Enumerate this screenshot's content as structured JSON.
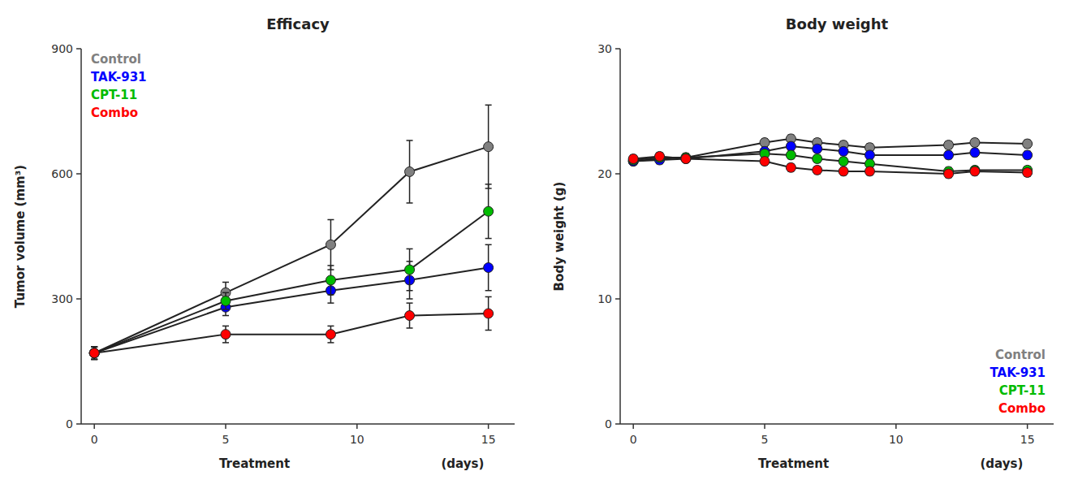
{
  "chart_data": [
    {
      "type": "line",
      "title": "Efficacy",
      "xlabel": [
        "Treatment",
        "(days)"
      ],
      "ylabel": "Tumor volume (mm³)",
      "x": [
        0,
        5,
        9,
        12,
        15
      ],
      "series": [
        {
          "name": "Control",
          "color": "#808080",
          "values": [
            170,
            315,
            430,
            605,
            665
          ],
          "errors": [
            15,
            25,
            60,
            75,
            100
          ]
        },
        {
          "name": "TAK-931",
          "color": "#0000FF",
          "values": [
            170,
            280,
            320,
            345,
            375
          ],
          "errors": [
            15,
            20,
            30,
            45,
            55
          ]
        },
        {
          "name": "CPT-11",
          "color": "#00BB00",
          "values": [
            170,
            295,
            345,
            370,
            510
          ],
          "errors": [
            15,
            20,
            35,
            50,
            65
          ]
        },
        {
          "name": "Combo",
          "color": "#FF0000",
          "values": [
            170,
            215,
            215,
            260,
            265
          ],
          "errors": [
            15,
            20,
            20,
            30,
            40
          ]
        }
      ],
      "xlim": [
        -0.5,
        16
      ],
      "xticks": [
        0,
        5,
        10,
        15
      ],
      "ylim": [
        0,
        900
      ],
      "yticks": [
        0,
        300,
        600,
        900
      ],
      "marker": "o",
      "legend": "upper left",
      "grid": false
    },
    {
      "type": "line",
      "title": "Body weight",
      "xlabel": [
        "Treatment",
        "(days)"
      ],
      "ylabel": "Body weight  (g)",
      "x": [
        0,
        1,
        2,
        5,
        6,
        7,
        8,
        9,
        12,
        13,
        15
      ],
      "series": [
        {
          "name": "Control",
          "color": "#808080",
          "values": [
            21.0,
            21.2,
            21.3,
            22.5,
            22.8,
            22.5,
            22.3,
            22.1,
            22.3,
            22.5,
            22.4
          ],
          "errors": [
            0.3,
            0.3,
            0.3,
            0.3,
            0.3,
            0.3,
            0.3,
            0.3,
            0.3,
            0.3,
            0.3
          ]
        },
        {
          "name": "TAK-931",
          "color": "#0000FF",
          "values": [
            21.0,
            21.1,
            21.2,
            21.8,
            22.2,
            22.0,
            21.8,
            21.5,
            21.5,
            21.7,
            21.5
          ],
          "errors": [
            0.3,
            0.3,
            0.3,
            0.3,
            0.3,
            0.3,
            0.3,
            0.3,
            0.3,
            0.3,
            0.3
          ]
        },
        {
          "name": "CPT-11",
          "color": "#00BB00",
          "values": [
            21.1,
            21.3,
            21.3,
            21.6,
            21.5,
            21.2,
            21.0,
            20.8,
            20.2,
            20.3,
            20.3
          ],
          "errors": [
            0.3,
            0.3,
            0.3,
            0.3,
            0.3,
            0.3,
            0.3,
            0.3,
            0.3,
            0.3,
            0.3
          ]
        },
        {
          "name": "Combo",
          "color": "#FF0000",
          "values": [
            21.2,
            21.4,
            21.2,
            21.0,
            20.5,
            20.3,
            20.2,
            20.2,
            20.0,
            20.2,
            20.1
          ],
          "errors": [
            0.3,
            0.3,
            0.3,
            0.3,
            0.3,
            0.3,
            0.3,
            0.3,
            0.3,
            0.3,
            0.3
          ]
        }
      ],
      "xlim": [
        -0.5,
        16
      ],
      "xticks": [
        0,
        5,
        10,
        15
      ],
      "ylim": [
        0,
        30
      ],
      "yticks": [
        0,
        10,
        20,
        30
      ],
      "marker": "o",
      "legend": "lower right",
      "grid": false
    }
  ]
}
